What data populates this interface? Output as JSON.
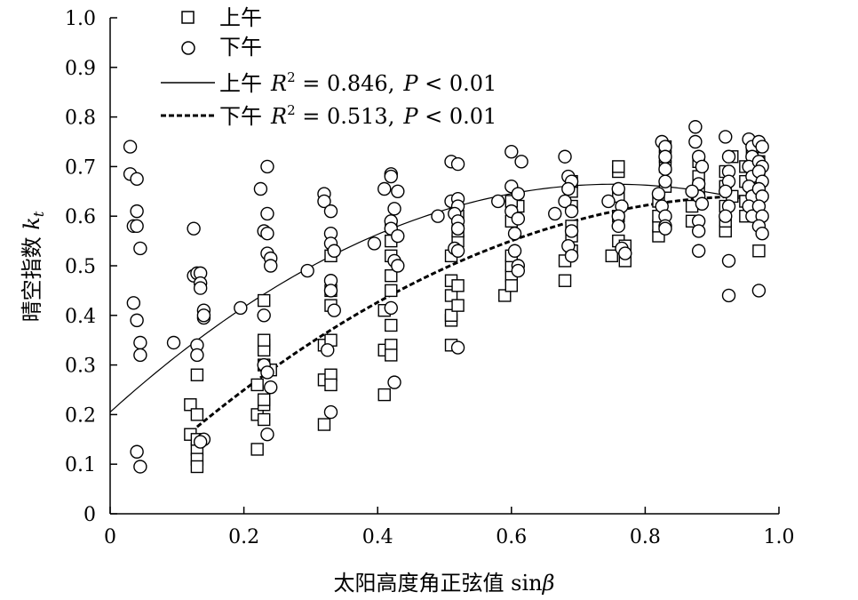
{
  "chart_data": {
    "type": "scatter",
    "title": "",
    "xlabel": "太阳高度角正弦值 sinβ",
    "xlabel_parts": {
      "text": "太阳高度角正弦值 sin",
      "symbol": "β"
    },
    "ylabel": "晴空指数 kt",
    "ylabel_parts": {
      "text": "晴空指数 ",
      "symbol": "k",
      "subscript": "t"
    },
    "xlim": [
      0,
      1.0
    ],
    "ylim": [
      0,
      1.0
    ],
    "x_ticks": [
      0,
      0.2,
      0.4,
      0.6,
      0.8,
      1.0
    ],
    "x_tick_labels": [
      "0",
      "0.2",
      "0.4",
      "0.6",
      "0.8",
      "1.0"
    ],
    "y_ticks": [
      0,
      0.1,
      0.2,
      0.3,
      0.4,
      0.5,
      0.6,
      0.7,
      0.8,
      0.9,
      1.0
    ],
    "y_tick_labels": [
      "0",
      "0.1",
      "0.2",
      "0.3",
      "0.4",
      "0.5",
      "0.6",
      "0.7",
      "0.8",
      "0.9",
      "1.0"
    ],
    "grid": false,
    "legend_position": "top-left",
    "legend": [
      {
        "id": "am-points",
        "label": "上午",
        "kind": "marker",
        "marker": "square"
      },
      {
        "id": "pm-points",
        "label": "下午",
        "kind": "marker",
        "marker": "circle"
      },
      {
        "id": "am-fit",
        "label": "上午",
        "kind": "line",
        "style": "solid",
        "r_symbol": "R",
        "r_exp": "2",
        "r_value": " = 0.846,",
        "p_symbol": "P",
        "p_value": " < 0.01"
      },
      {
        "id": "pm-fit",
        "label": "下午",
        "kind": "line",
        "style": "dashed",
        "r_symbol": "R",
        "r_exp": "2",
        "r_value": " = 0.513,",
        "p_symbol": "P",
        "p_value": " < 0.01"
      }
    ],
    "series": [
      {
        "name": "上午",
        "marker": "square",
        "points": [
          [
            0.12,
            0.22
          ],
          [
            0.12,
            0.16
          ],
          [
            0.13,
            0.13
          ],
          [
            0.13,
            0.11
          ],
          [
            0.13,
            0.095
          ],
          [
            0.13,
            0.28
          ],
          [
            0.13,
            0.2
          ],
          [
            0.13,
            0.15
          ],
          [
            0.22,
            0.13
          ],
          [
            0.22,
            0.2
          ],
          [
            0.22,
            0.26
          ],
          [
            0.23,
            0.34
          ],
          [
            0.23,
            0.33
          ],
          [
            0.23,
            0.22
          ],
          [
            0.23,
            0.19
          ],
          [
            0.23,
            0.23
          ],
          [
            0.23,
            0.35
          ],
          [
            0.23,
            0.43
          ],
          [
            0.23,
            0.3
          ],
          [
            0.24,
            0.29
          ],
          [
            0.32,
            0.18
          ],
          [
            0.32,
            0.27
          ],
          [
            0.32,
            0.34
          ],
          [
            0.33,
            0.35
          ],
          [
            0.33,
            0.28
          ],
          [
            0.33,
            0.26
          ],
          [
            0.33,
            0.42
          ],
          [
            0.33,
            0.45
          ],
          [
            0.33,
            0.52
          ],
          [
            0.41,
            0.24
          ],
          [
            0.41,
            0.33
          ],
          [
            0.42,
            0.34
          ],
          [
            0.42,
            0.32
          ],
          [
            0.42,
            0.38
          ],
          [
            0.41,
            0.41
          ],
          [
            0.42,
            0.45
          ],
          [
            0.42,
            0.48
          ],
          [
            0.42,
            0.52
          ],
          [
            0.42,
            0.55
          ],
          [
            0.42,
            0.58
          ],
          [
            0.51,
            0.34
          ],
          [
            0.51,
            0.39
          ],
          [
            0.51,
            0.4
          ],
          [
            0.51,
            0.44
          ],
          [
            0.51,
            0.47
          ],
          [
            0.51,
            0.52
          ],
          [
            0.52,
            0.46
          ],
          [
            0.52,
            0.42
          ],
          [
            0.52,
            0.55
          ],
          [
            0.52,
            0.57
          ],
          [
            0.52,
            0.6
          ],
          [
            0.59,
            0.44
          ],
          [
            0.6,
            0.48
          ],
          [
            0.6,
            0.5
          ],
          [
            0.6,
            0.52
          ],
          [
            0.6,
            0.46
          ],
          [
            0.6,
            0.59
          ],
          [
            0.61,
            0.62
          ],
          [
            0.6,
            0.63
          ],
          [
            0.68,
            0.47
          ],
          [
            0.68,
            0.51
          ],
          [
            0.69,
            0.53
          ],
          [
            0.69,
            0.56
          ],
          [
            0.69,
            0.58
          ],
          [
            0.69,
            0.62
          ],
          [
            0.69,
            0.65
          ],
          [
            0.69,
            0.67
          ],
          [
            0.75,
            0.52
          ],
          [
            0.76,
            0.55
          ],
          [
            0.76,
            0.6
          ],
          [
            0.76,
            0.64
          ],
          [
            0.76,
            0.69
          ],
          [
            0.76,
            0.7
          ],
          [
            0.77,
            0.51
          ],
          [
            0.77,
            0.54
          ],
          [
            0.82,
            0.56
          ],
          [
            0.82,
            0.58
          ],
          [
            0.82,
            0.6
          ],
          [
            0.82,
            0.63
          ],
          [
            0.83,
            0.66
          ],
          [
            0.83,
            0.7
          ],
          [
            0.83,
            0.72
          ],
          [
            0.83,
            0.74
          ],
          [
            0.87,
            0.59
          ],
          [
            0.87,
            0.62
          ],
          [
            0.88,
            0.65
          ],
          [
            0.88,
            0.68
          ],
          [
            0.88,
            0.71
          ],
          [
            0.92,
            0.57
          ],
          [
            0.92,
            0.59
          ],
          [
            0.92,
            0.62
          ],
          [
            0.92,
            0.66
          ],
          [
            0.92,
            0.69
          ],
          [
            0.93,
            0.72
          ],
          [
            0.93,
            0.64
          ],
          [
            0.95,
            0.6
          ],
          [
            0.95,
            0.63
          ],
          [
            0.95,
            0.67
          ],
          [
            0.95,
            0.7
          ],
          [
            0.96,
            0.73
          ],
          [
            0.96,
            0.65
          ],
          [
            0.97,
            0.53
          ],
          [
            0.97,
            0.6
          ],
          [
            0.97,
            0.64
          ],
          [
            0.97,
            0.68
          ],
          [
            0.97,
            0.71
          ],
          [
            0.97,
            0.74
          ]
        ]
      },
      {
        "name": "下午",
        "marker": "circle",
        "points": [
          [
            0.03,
            0.74
          ],
          [
            0.03,
            0.685
          ],
          [
            0.035,
            0.58
          ],
          [
            0.035,
            0.425
          ],
          [
            0.04,
            0.675
          ],
          [
            0.04,
            0.61
          ],
          [
            0.04,
            0.58
          ],
          [
            0.045,
            0.535
          ],
          [
            0.04,
            0.39
          ],
          [
            0.045,
            0.345
          ],
          [
            0.045,
            0.32
          ],
          [
            0.04,
            0.125
          ],
          [
            0.045,
            0.095
          ],
          [
            0.095,
            0.345
          ],
          [
            0.125,
            0.575
          ],
          [
            0.125,
            0.48
          ],
          [
            0.13,
            0.485
          ],
          [
            0.135,
            0.485
          ],
          [
            0.135,
            0.465
          ],
          [
            0.135,
            0.455
          ],
          [
            0.14,
            0.41
          ],
          [
            0.14,
            0.395
          ],
          [
            0.14,
            0.4
          ],
          [
            0.13,
            0.34
          ],
          [
            0.13,
            0.32
          ],
          [
            0.14,
            0.15
          ],
          [
            0.135,
            0.145
          ],
          [
            0.195,
            0.415
          ],
          [
            0.225,
            0.655
          ],
          [
            0.23,
            0.57
          ],
          [
            0.235,
            0.7
          ],
          [
            0.235,
            0.605
          ],
          [
            0.235,
            0.565
          ],
          [
            0.235,
            0.525
          ],
          [
            0.24,
            0.515
          ],
          [
            0.24,
            0.5
          ],
          [
            0.23,
            0.4
          ],
          [
            0.23,
            0.3
          ],
          [
            0.235,
            0.285
          ],
          [
            0.24,
            0.255
          ],
          [
            0.235,
            0.16
          ],
          [
            0.295,
            0.49
          ],
          [
            0.32,
            0.645
          ],
          [
            0.32,
            0.63
          ],
          [
            0.33,
            0.61
          ],
          [
            0.33,
            0.565
          ],
          [
            0.33,
            0.545
          ],
          [
            0.335,
            0.53
          ],
          [
            0.33,
            0.47
          ],
          [
            0.33,
            0.45
          ],
          [
            0.335,
            0.41
          ],
          [
            0.325,
            0.33
          ],
          [
            0.33,
            0.205
          ],
          [
            0.395,
            0.545
          ],
          [
            0.41,
            0.655
          ],
          [
            0.42,
            0.685
          ],
          [
            0.42,
            0.68
          ],
          [
            0.43,
            0.65
          ],
          [
            0.425,
            0.615
          ],
          [
            0.42,
            0.59
          ],
          [
            0.42,
            0.575
          ],
          [
            0.43,
            0.56
          ],
          [
            0.425,
            0.51
          ],
          [
            0.43,
            0.5
          ],
          [
            0.42,
            0.415
          ],
          [
            0.425,
            0.265
          ],
          [
            0.49,
            0.6
          ],
          [
            0.51,
            0.71
          ],
          [
            0.52,
            0.705
          ],
          [
            0.51,
            0.63
          ],
          [
            0.52,
            0.635
          ],
          [
            0.52,
            0.62
          ],
          [
            0.515,
            0.605
          ],
          [
            0.52,
            0.59
          ],
          [
            0.52,
            0.575
          ],
          [
            0.515,
            0.535
          ],
          [
            0.52,
            0.53
          ],
          [
            0.52,
            0.335
          ],
          [
            0.58,
            0.63
          ],
          [
            0.6,
            0.73
          ],
          [
            0.615,
            0.71
          ],
          [
            0.6,
            0.66
          ],
          [
            0.61,
            0.645
          ],
          [
            0.6,
            0.61
          ],
          [
            0.61,
            0.595
          ],
          [
            0.605,
            0.565
          ],
          [
            0.605,
            0.53
          ],
          [
            0.61,
            0.5
          ],
          [
            0.61,
            0.49
          ],
          [
            0.665,
            0.605
          ],
          [
            0.68,
            0.72
          ],
          [
            0.685,
            0.68
          ],
          [
            0.69,
            0.67
          ],
          [
            0.685,
            0.655
          ],
          [
            0.68,
            0.63
          ],
          [
            0.69,
            0.61
          ],
          [
            0.69,
            0.57
          ],
          [
            0.685,
            0.54
          ],
          [
            0.69,
            0.52
          ],
          [
            0.745,
            0.63
          ],
          [
            0.76,
            0.655
          ],
          [
            0.765,
            0.62
          ],
          [
            0.76,
            0.6
          ],
          [
            0.76,
            0.58
          ],
          [
            0.765,
            0.535
          ],
          [
            0.77,
            0.525
          ],
          [
            0.825,
            0.75
          ],
          [
            0.83,
            0.74
          ],
          [
            0.83,
            0.72
          ],
          [
            0.83,
            0.695
          ],
          [
            0.83,
            0.67
          ],
          [
            0.82,
            0.645
          ],
          [
            0.825,
            0.62
          ],
          [
            0.83,
            0.6
          ],
          [
            0.83,
            0.58
          ],
          [
            0.83,
            0.575
          ],
          [
            0.875,
            0.78
          ],
          [
            0.875,
            0.75
          ],
          [
            0.88,
            0.72
          ],
          [
            0.885,
            0.7
          ],
          [
            0.88,
            0.665
          ],
          [
            0.88,
            0.64
          ],
          [
            0.885,
            0.625
          ],
          [
            0.88,
            0.59
          ],
          [
            0.88,
            0.57
          ],
          [
            0.88,
            0.53
          ],
          [
            0.87,
            0.65
          ],
          [
            0.92,
            0.76
          ],
          [
            0.925,
            0.72
          ],
          [
            0.925,
            0.69
          ],
          [
            0.925,
            0.67
          ],
          [
            0.92,
            0.65
          ],
          [
            0.925,
            0.62
          ],
          [
            0.92,
            0.6
          ],
          [
            0.925,
            0.51
          ],
          [
            0.925,
            0.44
          ],
          [
            0.955,
            0.755
          ],
          [
            0.96,
            0.74
          ],
          [
            0.96,
            0.72
          ],
          [
            0.955,
            0.7
          ],
          [
            0.96,
            0.68
          ],
          [
            0.955,
            0.66
          ],
          [
            0.96,
            0.64
          ],
          [
            0.955,
            0.62
          ],
          [
            0.96,
            0.6
          ],
          [
            0.97,
            0.75
          ],
          [
            0.975,
            0.74
          ],
          [
            0.97,
            0.71
          ],
          [
            0.975,
            0.7
          ],
          [
            0.97,
            0.69
          ],
          [
            0.975,
            0.67
          ],
          [
            0.97,
            0.655
          ],
          [
            0.975,
            0.64
          ],
          [
            0.97,
            0.62
          ],
          [
            0.975,
            0.6
          ],
          [
            0.97,
            0.58
          ],
          [
            0.975,
            0.565
          ],
          [
            0.97,
            0.45
          ]
        ]
      }
    ],
    "fit_lines": [
      {
        "name": "上午",
        "style": "solid",
        "color": "#000000",
        "x_range": [
          0,
          0.97
        ],
        "coefficients": [
          0.205,
          1.22,
          -0.81
        ],
        "r2": 0.846,
        "p": "< 0.01"
      },
      {
        "name": "下午",
        "style": "dashed",
        "color": "#000000",
        "x_range": [
          0.13,
          0.96
        ],
        "coefficients": [
          0.02,
          1.28,
          -0.66
        ],
        "r2": 0.513,
        "p": "< 0.01"
      }
    ],
    "colors": {
      "marker_stroke": "#000000",
      "marker_fill": "#ffffff",
      "line": "#000000"
    }
  }
}
